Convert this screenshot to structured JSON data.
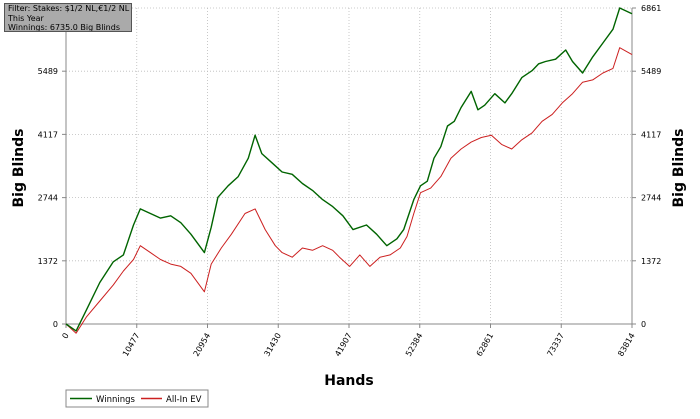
{
  "filter_box": {
    "lines": [
      "Filter: Stakes: $1/2 NL,€1/2 NL",
      "This Year",
      "Winnings: 6735.0 Big Blinds"
    ]
  },
  "colors": {
    "winnings": "#006400",
    "allin_ev": "#cc2020",
    "grid": "#bbbbbb",
    "axis": "#888888",
    "background": "#ffffff"
  },
  "chart_data": {
    "type": "line",
    "xlabel": "Hands",
    "ylabel": "Big Blinds",
    "xlim": [
      0,
      83814
    ],
    "ylim": [
      0,
      6861
    ],
    "x_ticks": [
      0,
      10477,
      20954,
      31430,
      41907,
      52384,
      62861,
      73337,
      83814
    ],
    "y_ticks": [
      0,
      1372,
      2744,
      4117,
      5489,
      6861
    ],
    "grid": true,
    "legend_position": "bottom-left",
    "series": [
      {
        "name": "Winnings",
        "color": "#006400",
        "points": [
          [
            0,
            0
          ],
          [
            1500,
            -150
          ],
          [
            3000,
            300
          ],
          [
            5000,
            900
          ],
          [
            7000,
            1350
          ],
          [
            8500,
            1500
          ],
          [
            10000,
            2150
          ],
          [
            11000,
            2500
          ],
          [
            12500,
            2400
          ],
          [
            14000,
            2300
          ],
          [
            15500,
            2350
          ],
          [
            17000,
            2200
          ],
          [
            18500,
            1950
          ],
          [
            20500,
            1550
          ],
          [
            21500,
            2100
          ],
          [
            22500,
            2750
          ],
          [
            24000,
            3000
          ],
          [
            25500,
            3200
          ],
          [
            27000,
            3600
          ],
          [
            28000,
            4100
          ],
          [
            29000,
            3700
          ],
          [
            30500,
            3500
          ],
          [
            32000,
            3300
          ],
          [
            33500,
            3250
          ],
          [
            35000,
            3050
          ],
          [
            36500,
            2900
          ],
          [
            38000,
            2700
          ],
          [
            39500,
            2550
          ],
          [
            41000,
            2350
          ],
          [
            42500,
            2050
          ],
          [
            44500,
            2150
          ],
          [
            46000,
            1950
          ],
          [
            47500,
            1700
          ],
          [
            49000,
            1850
          ],
          [
            50000,
            2050
          ],
          [
            51500,
            2700
          ],
          [
            52500,
            3000
          ],
          [
            53500,
            3100
          ],
          [
            54500,
            3600
          ],
          [
            55500,
            3850
          ],
          [
            56500,
            4300
          ],
          [
            57500,
            4400
          ],
          [
            58500,
            4700
          ],
          [
            60000,
            5050
          ],
          [
            61000,
            4650
          ],
          [
            62000,
            4750
          ],
          [
            63500,
            5000
          ],
          [
            65000,
            4800
          ],
          [
            66000,
            5000
          ],
          [
            67500,
            5350
          ],
          [
            69000,
            5500
          ],
          [
            70000,
            5650
          ],
          [
            71000,
            5700
          ],
          [
            72500,
            5750
          ],
          [
            74000,
            5950
          ],
          [
            75000,
            5700
          ],
          [
            76500,
            5450
          ],
          [
            78000,
            5800
          ],
          [
            79500,
            6100
          ],
          [
            81000,
            6400
          ],
          [
            82000,
            6861
          ],
          [
            83814,
            6735
          ]
        ]
      },
      {
        "name": "All-In EV",
        "color": "#cc2020",
        "points": [
          [
            0,
            0
          ],
          [
            1500,
            -200
          ],
          [
            3000,
            150
          ],
          [
            5000,
            500
          ],
          [
            7000,
            850
          ],
          [
            8500,
            1150
          ],
          [
            10000,
            1400
          ],
          [
            11000,
            1700
          ],
          [
            12500,
            1550
          ],
          [
            14000,
            1400
          ],
          [
            15500,
            1300
          ],
          [
            17000,
            1250
          ],
          [
            18500,
            1100
          ],
          [
            20500,
            700
          ],
          [
            21500,
            1300
          ],
          [
            23000,
            1650
          ],
          [
            24500,
            1950
          ],
          [
            26500,
            2400
          ],
          [
            28000,
            2500
          ],
          [
            29500,
            2050
          ],
          [
            31000,
            1700
          ],
          [
            32000,
            1550
          ],
          [
            33500,
            1450
          ],
          [
            35000,
            1650
          ],
          [
            36500,
            1600
          ],
          [
            38000,
            1700
          ],
          [
            39500,
            1600
          ],
          [
            40500,
            1450
          ],
          [
            42000,
            1250
          ],
          [
            43500,
            1500
          ],
          [
            45000,
            1250
          ],
          [
            46500,
            1450
          ],
          [
            48000,
            1500
          ],
          [
            49500,
            1650
          ],
          [
            50500,
            1900
          ],
          [
            51500,
            2400
          ],
          [
            52500,
            2850
          ],
          [
            54000,
            2950
          ],
          [
            55500,
            3200
          ],
          [
            57000,
            3600
          ],
          [
            58500,
            3800
          ],
          [
            60000,
            3950
          ],
          [
            61500,
            4050
          ],
          [
            63000,
            4100
          ],
          [
            64500,
            3900
          ],
          [
            66000,
            3800
          ],
          [
            67500,
            4000
          ],
          [
            69000,
            4150
          ],
          [
            70500,
            4400
          ],
          [
            72000,
            4550
          ],
          [
            73500,
            4800
          ],
          [
            75000,
            5000
          ],
          [
            76500,
            5250
          ],
          [
            78000,
            5300
          ],
          [
            79500,
            5450
          ],
          [
            81000,
            5550
          ],
          [
            82000,
            6000
          ],
          [
            83814,
            5850
          ]
        ]
      }
    ]
  }
}
